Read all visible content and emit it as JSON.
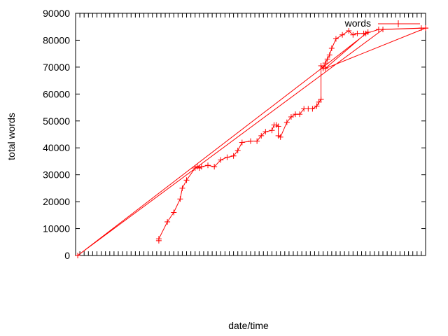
{
  "chart_data": {
    "type": "line",
    "xlabel": "date/time",
    "ylabel": "total words",
    "ylim": [
      0,
      90000
    ],
    "yticks": [
      "0",
      "10000",
      "20000",
      "30000",
      "40000",
      "50000",
      "60000",
      "70000",
      "80000",
      "90000"
    ],
    "xlim": [
      0,
      82
    ],
    "xticks_count": 82,
    "xtick_label_legibility": "illegible (overlapping rotated date labels)",
    "grid": false,
    "legend_position": "top-right",
    "colors": {
      "series": "#ff0000",
      "axes": "#000000",
      "background": "#ffffff"
    },
    "series": [
      {
        "name": "words",
        "marker": "plus",
        "points": [
          [
            19.5,
            5500
          ],
          [
            19.5,
            6200
          ],
          [
            21.5,
            12500
          ],
          [
            23.0,
            16000
          ],
          [
            24.5,
            21000
          ],
          [
            25.0,
            25000
          ],
          [
            26.0,
            28000
          ],
          [
            28.0,
            32500
          ],
          [
            28.5,
            33000
          ],
          [
            29.0,
            32500
          ],
          [
            29.5,
            33000
          ],
          [
            31.0,
            33500
          ],
          [
            32.5,
            33000
          ],
          [
            34.0,
            35500
          ],
          [
            35.5,
            36500
          ],
          [
            37.0,
            37000
          ],
          [
            38.0,
            39000
          ],
          [
            39.0,
            42000
          ],
          [
            41.0,
            42500
          ],
          [
            42.5,
            42500
          ],
          [
            43.5,
            44500
          ],
          [
            44.5,
            46000
          ],
          [
            46.0,
            46500
          ],
          [
            46.5,
            48500
          ],
          [
            47.0,
            48500
          ],
          [
            47.5,
            48000
          ],
          [
            47.5,
            44500
          ],
          [
            48.0,
            44000
          ],
          [
            49.5,
            49500
          ],
          [
            50.5,
            51500
          ],
          [
            51.5,
            52500
          ],
          [
            52.5,
            52500
          ],
          [
            53.5,
            54500
          ],
          [
            54.5,
            54500
          ],
          [
            55.5,
            54500
          ],
          [
            56.5,
            55500
          ],
          [
            57.0,
            57000
          ],
          [
            57.5,
            58000
          ],
          [
            57.5,
            70500
          ],
          [
            58.0,
            69500
          ],
          [
            58.5,
            71500
          ],
          [
            59.0,
            73000
          ],
          [
            59.5,
            74500
          ],
          [
            60.0,
            77000
          ],
          [
            61.0,
            80500
          ],
          [
            62.5,
            82000
          ],
          [
            64.0,
            83500
          ],
          [
            65.0,
            82000
          ],
          [
            66.0,
            82500
          ],
          [
            67.5,
            82500
          ],
          [
            68.5,
            83000
          ],
          [
            58.0,
            70000
          ],
          [
            0.5,
            0
          ],
          [
            72.0,
            84000
          ],
          [
            82.0,
            84500
          ],
          [
            58.5,
            69500
          ],
          [
            68.0,
            82500
          ],
          [
            71.0,
            84000
          ],
          [
            81.0,
            84500
          ],
          [
            82.0,
            84500
          ]
        ]
      }
    ]
  }
}
